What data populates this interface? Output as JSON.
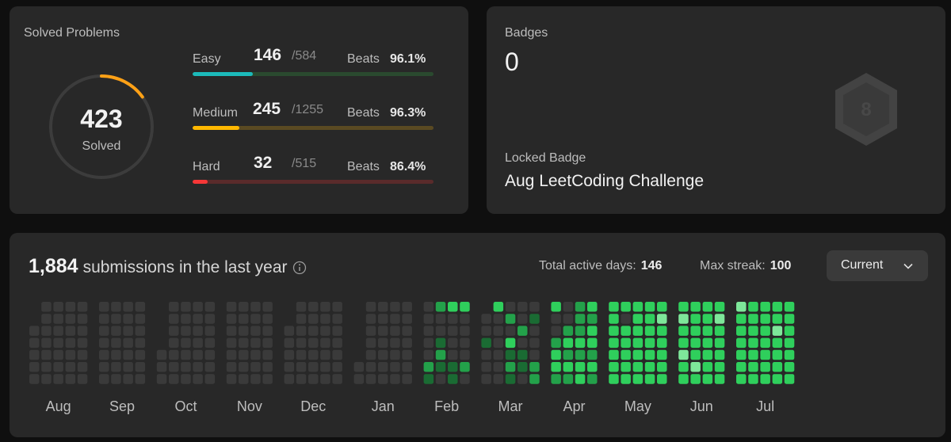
{
  "solved": {
    "title": "Solved Problems",
    "total": "423",
    "label": "Solved",
    "ring_progress": 0.15,
    "difficulties": [
      {
        "name": "Easy",
        "solved": "146",
        "total": "/584",
        "beats_label": "Beats",
        "beats": "96.1%",
        "progress": 0.25,
        "color": "#1cbaba",
        "track": "#2a4a2f"
      },
      {
        "name": "Medium",
        "solved": "245",
        "total": "/1255",
        "beats_label": "Beats",
        "beats": "96.3%",
        "progress": 0.195,
        "color": "#ffb800",
        "track": "#5a4a22"
      },
      {
        "name": "Hard",
        "solved": "32",
        "total": "/515",
        "beats_label": "Beats",
        "beats": "86.4%",
        "progress": 0.062,
        "color": "#f63737",
        "track": "#5a2b2b"
      }
    ]
  },
  "badges": {
    "label": "Badges",
    "count": "0",
    "locked_label": "Locked Badge",
    "locked_name": "Aug LeetCoding Challenge",
    "icon": "locked-badge-icon"
  },
  "heatmap": {
    "count": "1,884",
    "text": "submissions in the last year",
    "active_days_label": "Total active days:",
    "active_days": "146",
    "max_streak_label": "Max streak:",
    "max_streak": "100",
    "dropdown": "Current",
    "colors": [
      "#3a3a3a",
      "#1a6b33",
      "#23a14a",
      "#2fcf5c",
      "#7ee79a"
    ],
    "months": [
      {
        "name": "Aug",
        "weeks": [
          [
            0,
            0,
            0,
            0,
            0
          ],
          [
            0,
            0,
            0,
            0,
            0,
            0,
            0
          ],
          [
            0,
            0,
            0,
            0,
            0,
            0,
            0
          ],
          [
            0,
            0,
            0,
            0,
            0,
            0,
            0
          ],
          [
            0,
            0,
            0,
            0,
            0,
            0,
            0
          ]
        ],
        "first": 2
      },
      {
        "name": "Sep",
        "weeks": [
          [
            0,
            0,
            0,
            0,
            0,
            0,
            0
          ],
          [
            0,
            0,
            0,
            0,
            0,
            0,
            0
          ],
          [
            0,
            0,
            0,
            0,
            0,
            0,
            0
          ],
          [
            0,
            0,
            0,
            0,
            0,
            0,
            0
          ]
        ],
        "first": 1
      },
      {
        "name": "Oct",
        "weeks": [
          [
            0,
            0,
            0
          ],
          [
            0,
            0,
            0,
            0,
            0,
            0,
            0
          ],
          [
            0,
            0,
            0,
            0,
            0,
            0,
            0
          ],
          [
            0,
            0,
            0,
            0,
            0,
            0,
            0
          ],
          [
            0,
            0,
            0,
            0,
            0,
            0,
            0
          ]
        ],
        "first": 4
      },
      {
        "name": "Nov",
        "weeks": [
          [
            0,
            0,
            0,
            0,
            0,
            0,
            0
          ],
          [
            0,
            0,
            0,
            0,
            0,
            0,
            0
          ],
          [
            0,
            0,
            0,
            0,
            0,
            0,
            0
          ],
          [
            0,
            0,
            0,
            0,
            0,
            0,
            0
          ]
        ],
        "first": 1
      },
      {
        "name": "Dec",
        "weeks": [
          [
            0,
            0,
            0,
            0,
            0
          ],
          [
            0,
            0,
            0,
            0,
            0,
            0,
            0
          ],
          [
            0,
            0,
            0,
            0,
            0,
            0,
            0
          ],
          [
            0,
            0,
            0,
            0,
            0,
            0,
            0
          ],
          [
            0,
            0,
            0,
            0,
            0,
            0,
            0
          ]
        ],
        "first": 2
      },
      {
        "name": "Jan",
        "weeks": [
          [
            0,
            0
          ],
          [
            0,
            0,
            0,
            0,
            0,
            0,
            0
          ],
          [
            0,
            0,
            0,
            0,
            0,
            0,
            0
          ],
          [
            0,
            0,
            0,
            0,
            0,
            0,
            0
          ],
          [
            0,
            0,
            0,
            0,
            0,
            0,
            0
          ]
        ],
        "first": 5
      },
      {
        "name": "Feb",
        "weeks": [
          [
            0,
            0,
            0,
            0,
            0,
            2,
            1
          ],
          [
            2,
            0,
            0,
            1,
            2,
            1,
            0
          ],
          [
            3,
            0,
            0,
            0,
            0,
            1,
            1
          ],
          [
            3,
            0,
            0,
            0,
            0,
            2,
            0
          ]
        ],
        "first": 0
      },
      {
        "name": "Mar",
        "weeks": [
          [
            0,
            0,
            1,
            0,
            0,
            0
          ],
          [
            3,
            0,
            0,
            0,
            0,
            0,
            0
          ],
          [
            0,
            2,
            0,
            3,
            1,
            2,
            1
          ],
          [
            0,
            0,
            2,
            0,
            1,
            1,
            0
          ],
          [
            0,
            1,
            0,
            0,
            0,
            2,
            2
          ]
        ],
        "first": 1
      },
      {
        "name": "Apr",
        "weeks": [
          [
            3,
            0,
            0,
            2,
            3,
            3,
            2
          ],
          [
            0,
            0,
            2,
            3,
            2,
            3,
            2
          ],
          [
            2,
            2,
            2,
            3,
            2,
            3,
            3
          ],
          [
            3,
            2,
            3,
            3,
            2,
            3,
            2
          ]
        ],
        "first": 0
      },
      {
        "name": "May",
        "weeks": [
          [
            3,
            3,
            3,
            3,
            3,
            3,
            3
          ],
          [
            3,
            0,
            3,
            3,
            3,
            3,
            3
          ],
          [
            3,
            3,
            3,
            3,
            3,
            3,
            3
          ],
          [
            3,
            3,
            3,
            3,
            3,
            3,
            3
          ],
          [
            3,
            4,
            3,
            3,
            3,
            3,
            3
          ]
        ],
        "first": 0
      },
      {
        "name": "Jun",
        "weeks": [
          [
            3,
            4,
            3,
            3,
            4,
            3,
            3
          ],
          [
            3,
            3,
            3,
            3,
            3,
            4,
            3
          ],
          [
            3,
            3,
            3,
            3,
            3,
            3,
            3
          ],
          [
            3,
            4,
            3,
            3,
            3,
            3,
            3
          ]
        ],
        "first": 0
      },
      {
        "name": "Jul",
        "weeks": [
          [
            4,
            3,
            3,
            3,
            3,
            3,
            3
          ],
          [
            3,
            3,
            3,
            3,
            3,
            3,
            3
          ],
          [
            3,
            3,
            3,
            3,
            3,
            3,
            3
          ],
          [
            3,
            3,
            4,
            3,
            3,
            3,
            3
          ],
          [
            3,
            3,
            3,
            3,
            3,
            3,
            3
          ]
        ],
        "first": 0
      }
    ]
  }
}
